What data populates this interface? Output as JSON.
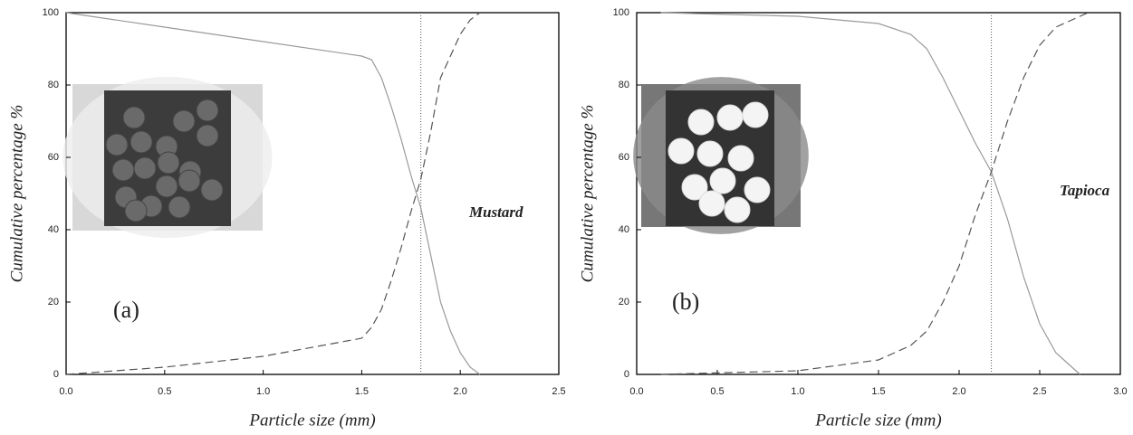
{
  "chart_data": [
    {
      "type": "line",
      "xlabel": "Particle size (mm)",
      "ylabel": "Cumulative percentage %",
      "annotations": [
        "Mustard",
        "(a)"
      ],
      "x": [
        0,
        0.5,
        1.0,
        1.5,
        1.55,
        1.6,
        1.65,
        1.7,
        1.75,
        1.8,
        1.85,
        1.9,
        1.95,
        2.0,
        2.05,
        2.1
      ],
      "series": [
        {
          "color": "#9a9a9a",
          "linestyle": "solid",
          "values": [
            100,
            96,
            92,
            88,
            87,
            82,
            74,
            65,
            55,
            46,
            33,
            20,
            12,
            6,
            2,
            0
          ]
        },
        {
          "color": "#555555",
          "linestyle": "dashed",
          "values": [
            0,
            2,
            5,
            10,
            13,
            18,
            26,
            35,
            45,
            54,
            67,
            82,
            88,
            94,
            98,
            100
          ]
        }
      ],
      "vline": 1.8,
      "xlim": [
        0,
        2.5
      ],
      "xticks": [
        {
          "value": 0,
          "label": "0.0"
        },
        0.5,
        {
          "value": 1,
          "label": "1.0"
        },
        1.5,
        {
          "value": 2,
          "label": "2.0"
        },
        2.5
      ],
      "ylim": [
        0,
        100
      ],
      "yticks": [
        0,
        20,
        40,
        60,
        80,
        100
      ]
    },
    {
      "type": "line",
      "xlabel": "Particle size (mm)",
      "ylabel": "Cumulative percentage %",
      "annotations": [
        "Tapioca",
        "(b)"
      ],
      "x": [
        0.15,
        1.0,
        1.5,
        1.7,
        1.8,
        1.9,
        2.0,
        2.1,
        2.2,
        2.3,
        2.4,
        2.5,
        2.6,
        2.7,
        2.75,
        2.8
      ],
      "series": [
        {
          "color": "#9a9a9a",
          "linestyle": "solid",
          "values": [
            100,
            99,
            97,
            94,
            90,
            82,
            73,
            64,
            56,
            43,
            27,
            14,
            6,
            2,
            0,
            null
          ]
        },
        {
          "color": "#555555",
          "linestyle": "dashed",
          "values": [
            0,
            1,
            4,
            8,
            12,
            20,
            30,
            44,
            56,
            70,
            82,
            91,
            96,
            98,
            99,
            100
          ]
        }
      ],
      "vline": 2.2,
      "xlim": [
        0,
        3.0
      ],
      "xticks": [
        {
          "value": 0,
          "label": "0.0"
        },
        0.5,
        {
          "value": 1,
          "label": "1.0"
        },
        1.5,
        {
          "value": 2,
          "label": "2.0"
        },
        2.5,
        {
          "value": 3,
          "label": "3.0"
        }
      ],
      "ylim": [
        0,
        100
      ],
      "yticks": [
        0,
        20,
        40,
        60,
        80,
        100
      ]
    }
  ]
}
